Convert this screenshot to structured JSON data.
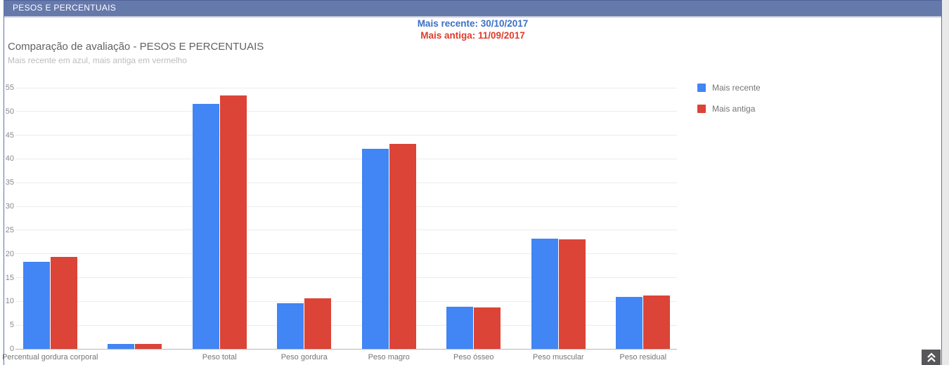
{
  "header": {
    "title": "PESOS E PERCENTUAIS",
    "bg_color": "#6679ab",
    "text_color": "#ffffff"
  },
  "comparison": {
    "recent": {
      "text": "Mais recente: 30/10/2017",
      "label": "Mais recente",
      "date": "30/10/2017",
      "color": "#3a6fc4"
    },
    "old": {
      "text": "Mais antiga: 11/09/2017",
      "label": "Mais antiga",
      "date": "11/09/2017",
      "color": "#e03c2a"
    }
  },
  "chart_data": {
    "type": "bar",
    "title": "Comparação de avaliação - PESOS E PERCENTUAIS",
    "subtitle": "Mais recente em azul, mais antiga em vermelho",
    "categories": [
      "Percentual gordura corporal",
      "",
      "Peso total",
      "Peso gordura",
      "Peso magro",
      "Peso ósseo",
      "Peso muscular",
      "Peso residual"
    ],
    "series": [
      {
        "name": "Mais recente",
        "color": "#4285f4",
        "values": [
          18.4,
          1.1,
          51.6,
          9.6,
          42.2,
          8.8,
          23.2,
          11.0
        ]
      },
      {
        "name": "Mais antiga",
        "color": "#db4437",
        "values": [
          19.4,
          1.0,
          53.3,
          10.6,
          43.1,
          8.7,
          23.1,
          11.3
        ]
      }
    ],
    "xlabel": "",
    "ylabel": "",
    "ylim": [
      0,
      55
    ],
    "ytick_step": 5,
    "grid": true,
    "legend_position": "right"
  },
  "scroll_button": {
    "icon": "double-chevron-up"
  }
}
